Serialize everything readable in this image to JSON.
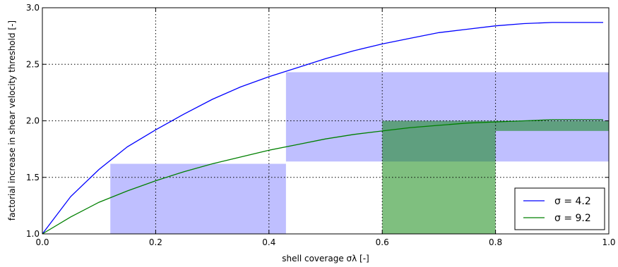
{
  "chart_data": {
    "type": "line",
    "xlabel": "shell coverage σλ [-]",
    "ylabel": "factorial increase in shear velocity threshold [-]",
    "xlim": [
      0.0,
      1.0
    ],
    "ylim": [
      1.0,
      3.0
    ],
    "grid": true,
    "legend_position": "bottom-right",
    "x_ticks": [
      "0.0",
      "0.2",
      "0.4",
      "0.6",
      "0.8",
      "1.0"
    ],
    "y_ticks": [
      "1.0",
      "1.5",
      "2.0",
      "2.5",
      "3.0"
    ],
    "series": [
      {
        "name": "σ = 4.2",
        "color": "#0000ff",
        "x": [
          0.0,
          0.05,
          0.1,
          0.15,
          0.2,
          0.25,
          0.3,
          0.35,
          0.4,
          0.45,
          0.5,
          0.55,
          0.6,
          0.65,
          0.7,
          0.75,
          0.8,
          0.85,
          0.9,
          0.95,
          0.99
        ],
        "values": [
          1.0,
          1.33,
          1.57,
          1.77,
          1.92,
          2.06,
          2.19,
          2.3,
          2.39,
          2.47,
          2.55,
          2.62,
          2.68,
          2.73,
          2.78,
          2.81,
          2.84,
          2.86,
          2.87,
          2.87,
          2.87
        ]
      },
      {
        "name": "σ = 9.2",
        "color": "#008000",
        "x": [
          0.0,
          0.05,
          0.1,
          0.15,
          0.2,
          0.25,
          0.3,
          0.35,
          0.4,
          0.45,
          0.5,
          0.55,
          0.6,
          0.65,
          0.7,
          0.75,
          0.8,
          0.85,
          0.9,
          0.95,
          0.99
        ],
        "values": [
          1.0,
          1.15,
          1.28,
          1.38,
          1.47,
          1.55,
          1.62,
          1.68,
          1.74,
          1.79,
          1.84,
          1.88,
          1.91,
          1.94,
          1.96,
          1.98,
          1.99,
          2.0,
          2.01,
          2.01,
          2.01
        ]
      }
    ],
    "shaded_regions": [
      {
        "color": "#8080ff",
        "polygon": [
          [
            0.12,
            1.0
          ],
          [
            0.12,
            1.62
          ],
          [
            0.43,
            1.62
          ],
          [
            0.43,
            2.43
          ],
          [
            1.0,
            2.43
          ],
          [
            1.0,
            1.64
          ],
          [
            0.43,
            1.64
          ],
          [
            0.43,
            1.0
          ]
        ]
      },
      {
        "color": "#008000",
        "polygon": [
          [
            0.6,
            1.0
          ],
          [
            0.6,
            2.0
          ],
          [
            0.8,
            2.0
          ],
          [
            0.8,
            1.91
          ],
          [
            1.0,
            1.91
          ],
          [
            1.0,
            2.0
          ],
          [
            0.8,
            2.0
          ],
          [
            0.8,
            1.0
          ]
        ]
      }
    ]
  }
}
